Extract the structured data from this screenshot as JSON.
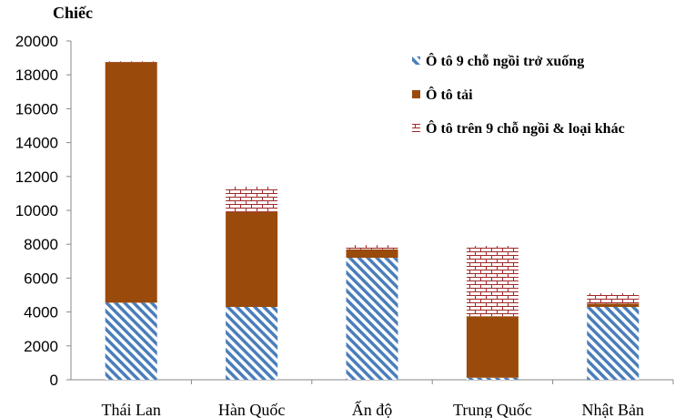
{
  "chart_data": {
    "type": "bar",
    "stacked": true,
    "title": "",
    "ylabel": "Chiếc",
    "xlabel": "",
    "ylim": [
      0,
      20000
    ],
    "yticks": [
      0,
      2000,
      4000,
      6000,
      8000,
      10000,
      12000,
      14000,
      16000,
      18000,
      20000
    ],
    "categories": [
      "Thái Lan",
      "Hàn Quốc",
      "Ấn độ",
      "Trung Quốc",
      "Nhật Bản"
    ],
    "series": [
      {
        "name": "Ô tô 9 chỗ ngồi trở xuống",
        "pattern": "diagonal-stripes",
        "color": "#4a7ebb",
        "values": [
          4550,
          4300,
          7200,
          120,
          4300
        ]
      },
      {
        "name": "Ô tô tải",
        "pattern": "solid",
        "color": "#9a4a0a",
        "values": [
          14200,
          5600,
          500,
          3630,
          200
        ]
      },
      {
        "name": "Ô tô  trên 9 chỗ ngồi & loại khác",
        "pattern": "brick",
        "color": "#a0282a",
        "values": [
          50,
          1500,
          250,
          4150,
          600
        ]
      }
    ],
    "legend_position": "top-right",
    "grid": false
  }
}
